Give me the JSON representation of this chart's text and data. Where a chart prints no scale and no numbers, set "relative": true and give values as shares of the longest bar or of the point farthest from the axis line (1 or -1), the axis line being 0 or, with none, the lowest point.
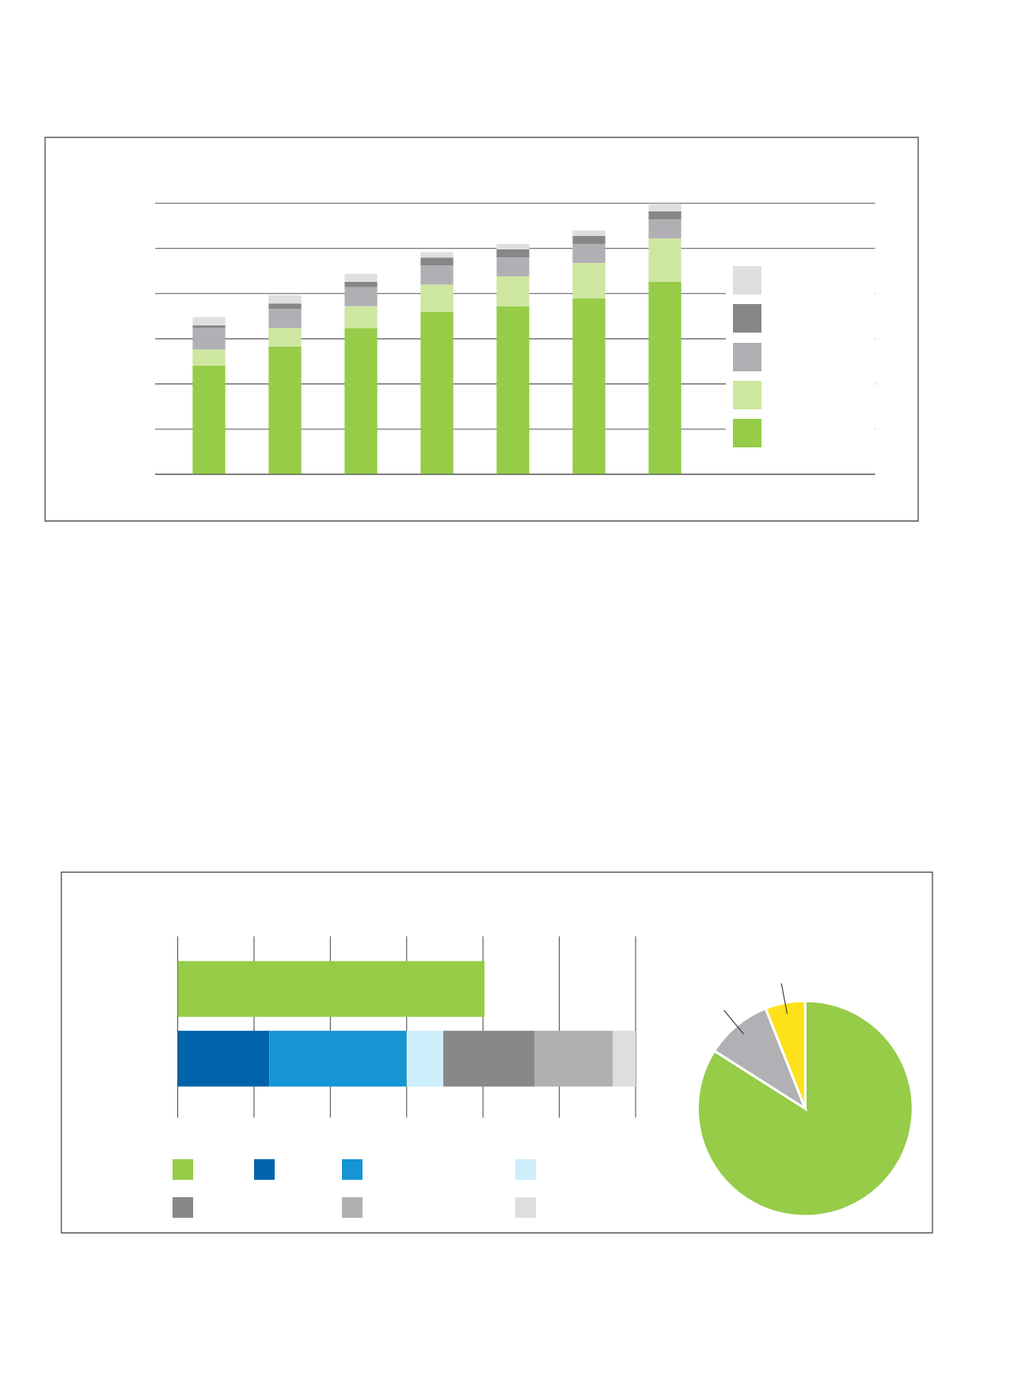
{
  "chart_data": [
    {
      "type": "bar",
      "relative": true,
      "stacked": true,
      "categories": [
        null,
        null,
        null,
        null,
        null,
        null,
        null
      ],
      "grid": "y",
      "series": [
        {
          "color": "#96cc47",
          "values": [
            0.4,
            0.47,
            0.54,
            0.6,
            0.62,
            0.65,
            0.71
          ]
        },
        {
          "color": "#cde7a0",
          "values": [
            0.06,
            0.07,
            0.08,
            0.1,
            0.11,
            0.13,
            0.16
          ]
        },
        {
          "color": "#b0b0b4",
          "values": [
            0.08,
            0.07,
            0.07,
            0.07,
            0.07,
            0.07,
            0.07
          ]
        },
        {
          "color": "#878787",
          "values": [
            0.01,
            0.02,
            0.02,
            0.03,
            0.03,
            0.03,
            0.03
          ]
        },
        {
          "color": "#dfdfdf",
          "values": [
            0.03,
            0.03,
            0.03,
            0.02,
            0.02,
            0.02,
            0.03
          ]
        }
      ]
    },
    {
      "type": "bar",
      "relative": true,
      "stacked": true,
      "orientation": "horizontal",
      "categories": [
        null,
        null
      ],
      "grid": "x",
      "series": [
        {
          "color": "#96cc48",
          "values": [
            0.67,
            null
          ]
        },
        {
          "color": "#0063ac",
          "values": [
            null,
            0.2
          ]
        },
        {
          "color": "#1595d3",
          "values": [
            null,
            0.3
          ]
        },
        {
          "color": "#cdeffc",
          "values": [
            null,
            0.08
          ]
        },
        {
          "color": "#87888a",
          "values": [
            null,
            0.2
          ]
        },
        {
          "color": "#b0b0b3",
          "values": [
            null,
            0.17
          ]
        },
        {
          "color": "#dedede",
          "values": [
            null,
            0.05
          ]
        }
      ]
    },
    {
      "type": "pie",
      "categories": [
        null,
        null,
        null
      ],
      "values": [
        84,
        10,
        6
      ],
      "colors": [
        "#96cc48",
        "#b1b0b5",
        "#fde11a"
      ]
    }
  ]
}
